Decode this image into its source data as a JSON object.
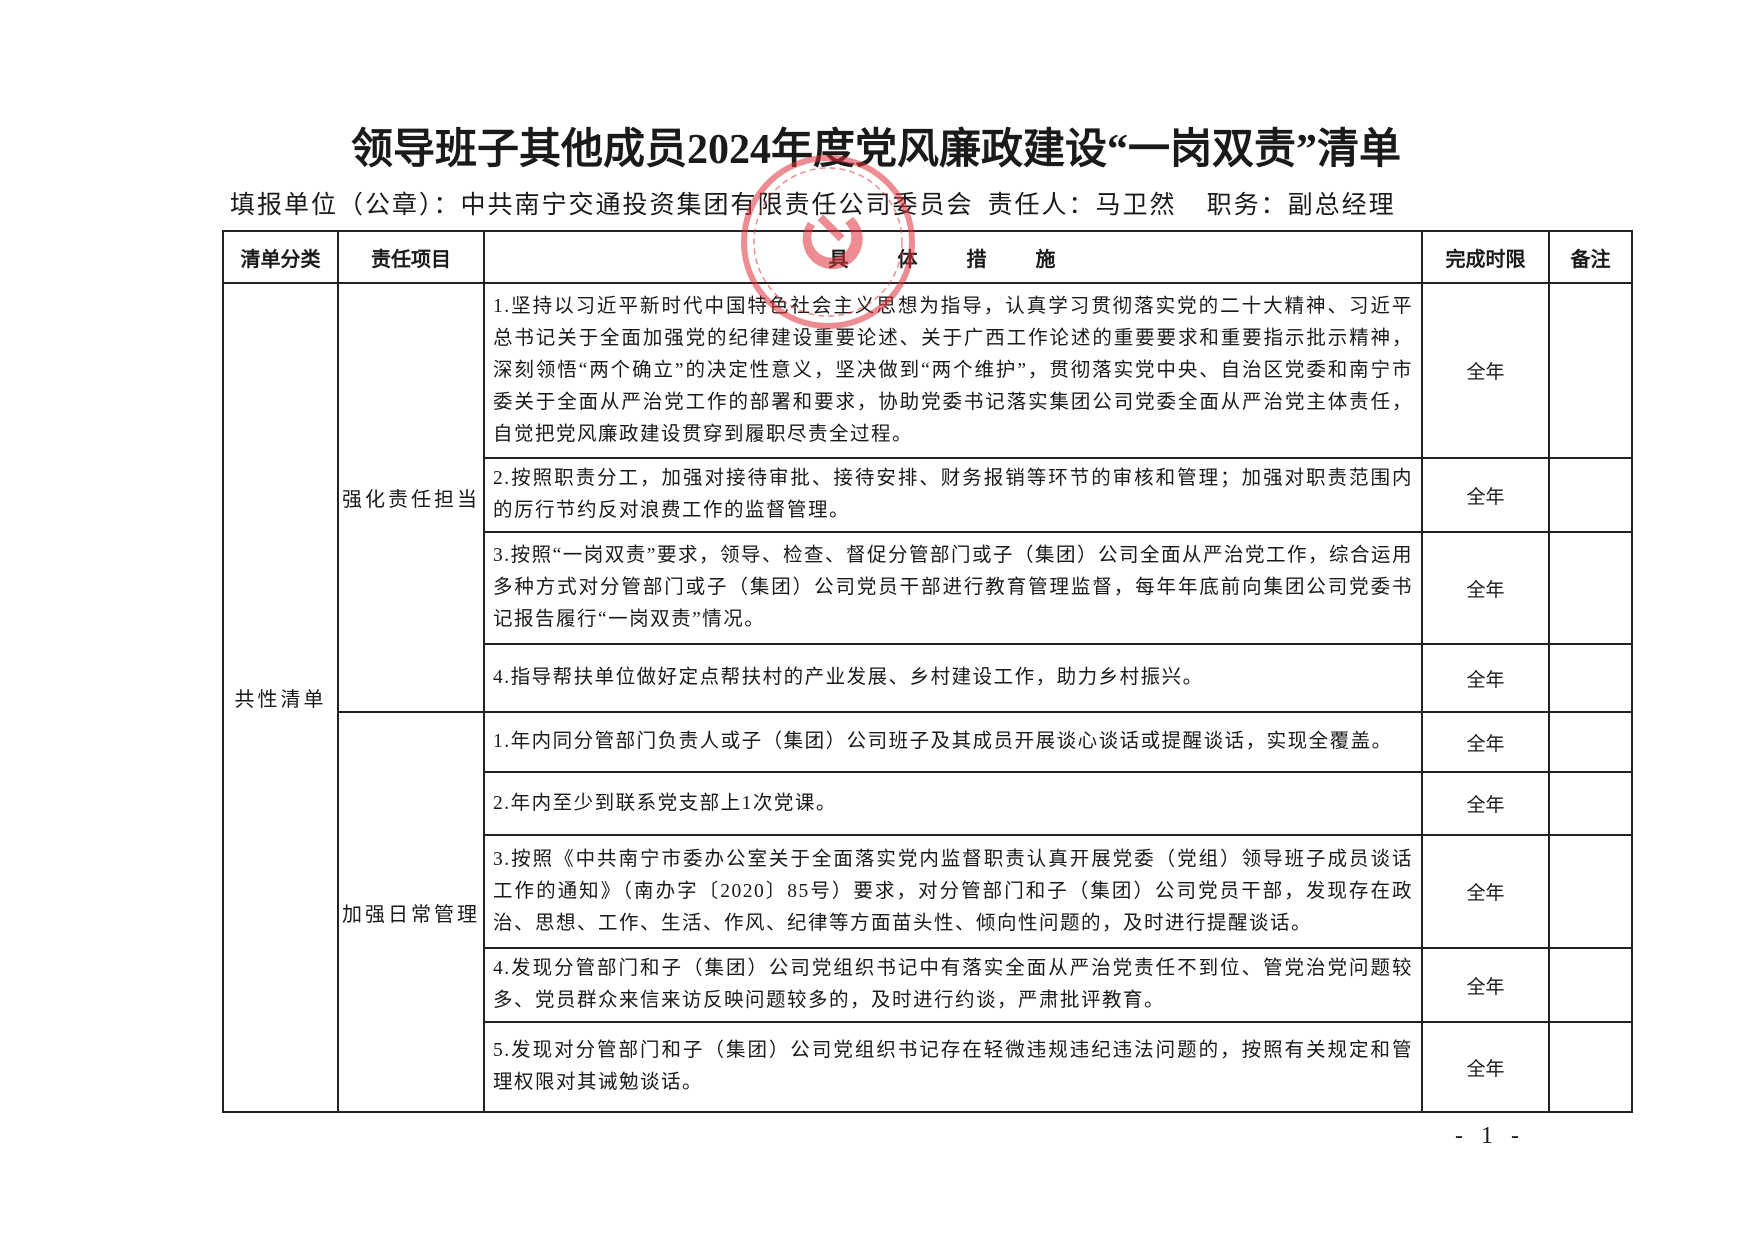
{
  "title": "领导班子其他成员2024年度党风廉政建设“一岗双责”清单",
  "subtitle": {
    "unit_label": "填报单位（公章）：",
    "unit": "中共南宁交通投资集团有限责任公司委员会",
    "person_label": "责任人：",
    "person": "马卫然",
    "post_label": "职务：",
    "post": "副总经理"
  },
  "headers": [
    "清单分类",
    "责任项目",
    "具 体 措 施",
    "完成时限",
    "备注"
  ],
  "category": "共性清单",
  "groups": [
    {
      "item": "强化责任担当",
      "rows": [
        {
          "measure": "1.坚持以习近平新时代中国特色社会主义思想为指导，认真学习贯彻落实党的二十大精神、习近平总书记关于全面加强党的纪律建设重要论述、关于广西工作论述的重要要求和重要指示批示精神，深刻领悟“两个确立”的决定性意义，坚决做到“两个维护”，贯彻落实党中央、自治区党委和南宁市委关于全面从严治党工作的部署和要求，协助党委书记落实集团公司党委全面从严治党主体责任，自觉把党风廉政建设贯穿到履职尽责全过程。",
          "deadline": "全年",
          "note": ""
        },
        {
          "measure": "2.按照职责分工，加强对接待审批、接待安排、财务报销等环节的审核和管理；加强对职责范围内的厉行节约反对浪费工作的监督管理。",
          "deadline": "全年",
          "note": ""
        },
        {
          "measure": "3.按照“一岗双责”要求，领导、检查、督促分管部门或子（集团）公司全面从严治党工作，综合运用多种方式对分管部门或子（集团）公司党员干部进行教育管理监督，每年年底前向集团公司党委书记报告履行“一岗双责”情况。",
          "deadline": "全年",
          "note": ""
        },
        {
          "measure": "4.指导帮扶单位做好定点帮扶村的产业发展、乡村建设工作，助力乡村振兴。",
          "deadline": "全年",
          "note": ""
        }
      ]
    },
    {
      "item": "加强日常管理",
      "rows": [
        {
          "measure": "1.年内同分管部门负责人或子（集团）公司班子及其成员开展谈心谈话或提醒谈话，实现全覆盖。",
          "deadline": "全年",
          "note": ""
        },
        {
          "measure": "2.年内至少到联系党支部上1次党课。",
          "deadline": "全年",
          "note": ""
        },
        {
          "measure": "3.按照《中共南宁市委办公室关于全面落实党内监督职责认真开展党委（党组）领导班子成员谈话工作的通知》（南办字〔2020〕85号）要求，对分管部门和子（集团）公司党员干部，发现存在政治、思想、工作、生活、作风、纪律等方面苗头性、倾向性问题的，及时进行提醒谈话。",
          "deadline": "全年",
          "note": ""
        },
        {
          "measure": "4.发现分管部门和子（集团）公司党组织书记中有落实全面从严治党责任不到位、管党治党问题较多、党员群众来信来访反映问题较多的，及时进行约谈，严肃批评教育。",
          "deadline": "全年",
          "note": ""
        },
        {
          "measure": "5.发现对分管部门和子（集团）公司党组织书记存在轻微违规违纪违法问题的，按照有关规定和管理权限对其诫勉谈话。",
          "deadline": "全年",
          "note": ""
        }
      ]
    }
  ],
  "page_number": "- 1 -",
  "stamp_color": "#e0303a"
}
